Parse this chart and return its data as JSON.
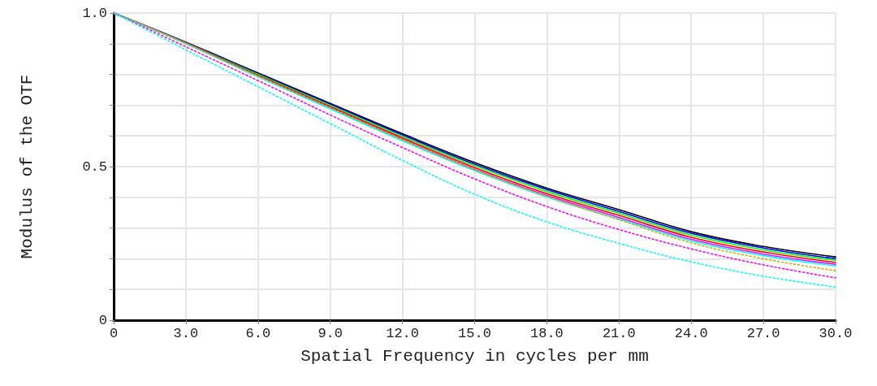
{
  "chart_data": {
    "type": "line",
    "xlabel": "Spatial Frequency in cycles per mm",
    "ylabel": "Modulus of the OTF",
    "x": [
      0,
      3,
      6,
      9,
      12,
      15,
      18,
      21,
      24,
      27,
      30
    ],
    "series": [
      {
        "color": "#000000",
        "line_style": "solid",
        "values": [
          1,
          0.905,
          0.805,
          0.706,
          0.607,
          0.513,
          0.43,
          0.36,
          0.288,
          0.24,
          0.206
        ]
      },
      {
        "color": "#0000ff",
        "line_style": "solid",
        "values": [
          1,
          0.904,
          0.803,
          0.703,
          0.603,
          0.508,
          0.425,
          0.354,
          0.283,
          0.235,
          0.2
        ]
      },
      {
        "color": "#00ff00",
        "line_style": "solid",
        "values": [
          1,
          0.903,
          0.8,
          0.699,
          0.598,
          0.503,
          0.419,
          0.348,
          0.277,
          0.229,
          0.195
        ]
      },
      {
        "color": "#ff0000",
        "line_style": "solid",
        "values": [
          1,
          0.902,
          0.797,
          0.695,
          0.593,
          0.497,
          0.412,
          0.341,
          0.27,
          0.222,
          0.188
        ]
      },
      {
        "color": "#ff00ff",
        "line_style": "solid",
        "values": [
          1,
          0.901,
          0.794,
          0.691,
          0.588,
          0.491,
          0.406,
          0.334,
          0.263,
          0.215,
          0.182
        ]
      },
      {
        "color": "#00ffff",
        "line_style": "solid",
        "values": [
          1,
          0.9,
          0.792,
          0.688,
          0.584,
          0.487,
          0.401,
          0.329,
          0.258,
          0.21,
          0.177
        ]
      },
      {
        "color": "#c8b400",
        "line_style": "dotted",
        "values": [
          1,
          0.9,
          0.795,
          0.692,
          0.588,
          0.49,
          0.403,
          0.327,
          0.252,
          0.2,
          0.161
        ]
      },
      {
        "color": "#ff00ff",
        "line_style": "dotted",
        "values": [
          1,
          0.89,
          0.78,
          0.668,
          0.562,
          0.46,
          0.37,
          0.295,
          0.232,
          0.18,
          0.138
        ]
      },
      {
        "color": "#00ffff",
        "line_style": "dotted",
        "values": [
          1,
          0.88,
          0.76,
          0.64,
          0.52,
          0.41,
          0.32,
          0.25,
          0.19,
          0.143,
          0.108
        ]
      }
    ],
    "xlim": [
      0,
      30
    ],
    "xticks": [
      0,
      {
        "value": 3,
        "label": "3.0"
      },
      {
        "value": 6,
        "label": "6.0"
      },
      {
        "value": 9,
        "label": "9.0"
      },
      {
        "value": 12,
        "label": "12.0"
      },
      {
        "value": 15,
        "label": "15.0"
      },
      {
        "value": 18,
        "label": "18.0"
      },
      {
        "value": 21,
        "label": "21.0"
      },
      {
        "value": 24,
        "label": "24.0"
      },
      {
        "value": 27,
        "label": "27.0"
      },
      {
        "value": 30,
        "label": "30.0"
      }
    ],
    "ylim": [
      0,
      1
    ],
    "yticks": [
      0,
      {
        "value": 0.1,
        "label": null
      },
      {
        "value": 0.2,
        "label": null
      },
      {
        "value": 0.3,
        "label": null
      },
      {
        "value": 0.4,
        "label": null
      },
      0.5,
      {
        "value": 0.6,
        "label": null
      },
      {
        "value": 0.7,
        "label": null
      },
      {
        "value": 0.8,
        "label": null
      },
      {
        "value": 0.9,
        "label": null
      },
      {
        "value": 1,
        "label": "1.0"
      }
    ],
    "grid": true,
    "marker": "none"
  }
}
